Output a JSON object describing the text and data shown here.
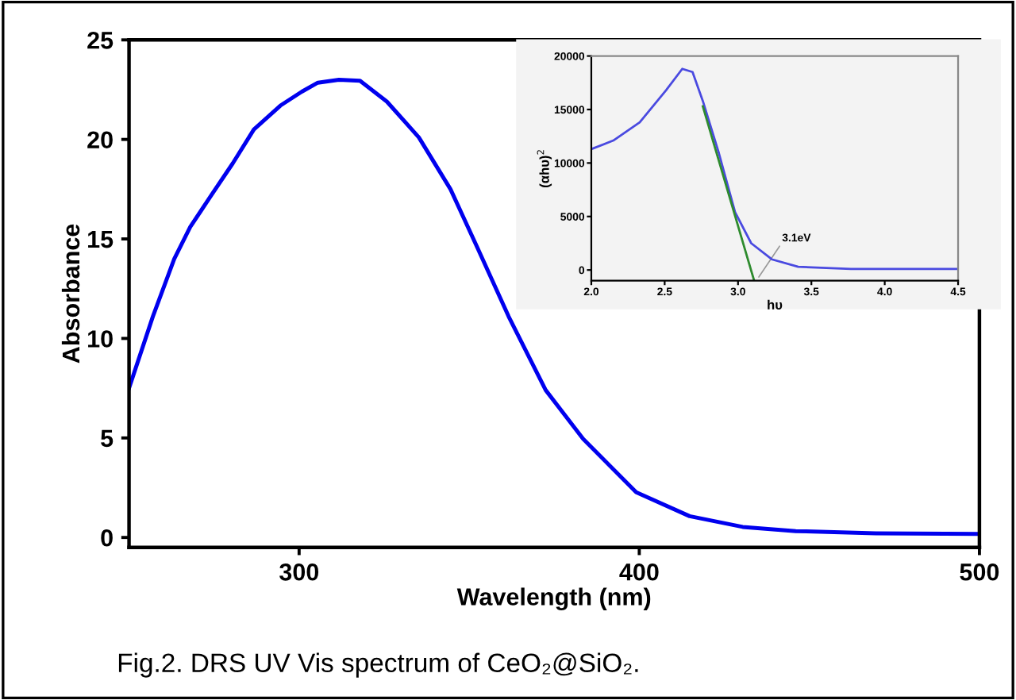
{
  "chart_data": [
    {
      "type": "line",
      "xlabel": "Wavelength (nm)",
      "ylabel": "Absorbance",
      "xlim": [
        250,
        500
      ],
      "ylim": [
        -0.5,
        25
      ],
      "xticks": [
        300,
        400,
        500
      ],
      "yticks": [
        0,
        5,
        10,
        15,
        20,
        25
      ],
      "grid": false,
      "marker": "none",
      "line_style": "solid",
      "series": [
        {
          "color": "#0000ee",
          "x": [
            250,
            257,
            263.3,
            268,
            274.2,
            280.5,
            286.7,
            294.5,
            300.8,
            305.5,
            311.7,
            317.9,
            325.8,
            335.2,
            344.5,
            352.3,
            361.6,
            372.5,
            383.5,
            399.1,
            414.8,
            430.4,
            446,
            469.5,
            499.8
          ],
          "values": [
            7.5,
            11.1,
            14.0,
            15.6,
            17.2,
            18.8,
            20.5,
            21.7,
            22.4,
            22.85,
            23.0,
            22.95,
            21.9,
            20.1,
            17.5,
            14.6,
            11.1,
            7.4,
            4.95,
            2.27,
            1.07,
            0.53,
            0.32,
            0.21,
            0.18
          ]
        }
      ],
      "annotations": [
        "Fig.2. DRS UV Vis spectrum of CeO₂@SiO₂."
      ]
    },
    {
      "type": "line",
      "xlabel": "hυ",
      "ylabel": "(αhυ)$^{2}$",
      "xlim": [
        2.0,
        4.5
      ],
      "ylim": [
        -1000,
        20000
      ],
      "xticks": [
        {
          "value": 2.0,
          "label": "2.0"
        },
        2.5,
        {
          "value": 3.0,
          "label": "3.0"
        },
        3.5,
        {
          "value": 4.0,
          "label": "4.0"
        },
        4.5
      ],
      "yticks": [
        0,
        5000,
        10000,
        15000,
        20000
      ],
      "grid": false,
      "marker": "none",
      "line_style": "solid",
      "series": [
        {
          "color": "#4a4ae0",
          "x": [
            2.0,
            2.15,
            2.33,
            2.51,
            2.62,
            2.69,
            2.76,
            2.87,
            2.98,
            3.09,
            3.23,
            3.41,
            3.77,
            4.5
          ],
          "values": [
            11300,
            12100,
            13800,
            16800,
            18800,
            18500,
            15800,
            10900,
            5400,
            2500,
            1000,
            300,
            100,
            100
          ]
        },
        {
          "color": "#2e8b2e",
          "x": [
            2.76,
            3.11
          ],
          "values": [
            15300,
            -1000
          ]
        }
      ],
      "annotations": [
        "3.1eV"
      ]
    }
  ]
}
